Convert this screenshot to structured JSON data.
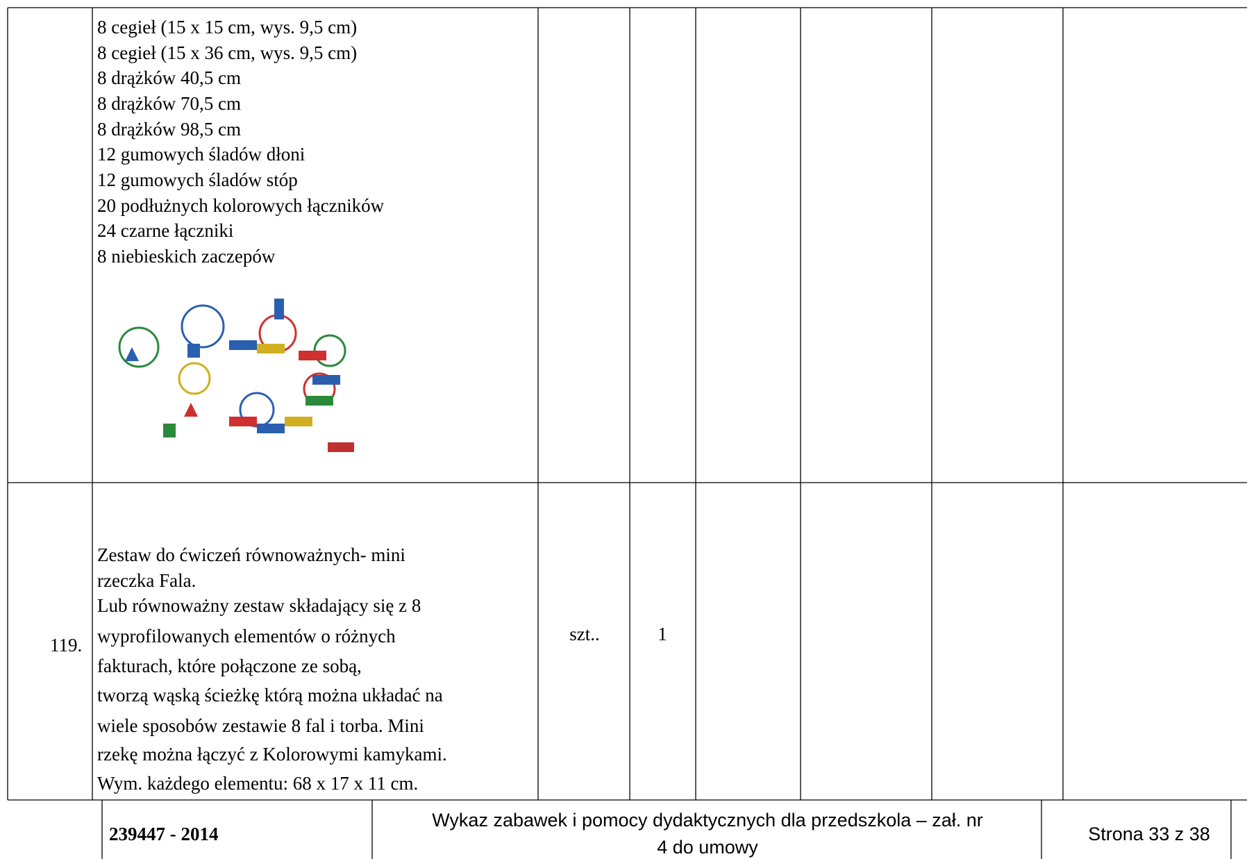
{
  "table": {
    "rows": [
      {
        "number": null,
        "description": [
          "8 cegieł (15 x 15 cm, wys. 9,5 cm)",
          "8 cegieł (15 x 36 cm, wys. 9,5 cm)",
          "8 drążków 40,5 cm",
          "8 drążków 70,5 cm",
          "8 drążków 98,5 cm",
          "12 gumowych śladów dłoni",
          "12 gumowych śladów stóp",
          "20 podłużnych kolorowych łączników",
          "24 czarne łączniki",
          "8 niebieskich zaczepów"
        ],
        "unit": null,
        "quantity": null
      },
      {
        "number": "119.",
        "description": [
          "Zestaw do ćwiczeń równoważnych- mini",
          "rzeczka Fala.",
          "Lub równoważny zestaw składający się z 8",
          "wyprofilowanych elementów o różnych",
          "fakturach, które połączone ze sobą,",
          "tworzą wąską ścieżkę którą  można układać na",
          "wiele sposobów zestawie 8 fal i torba. Mini",
          "rzekę można łączyć z Kolorowymi kamykami.",
          "Wym. każdego elementu: 68 x 17 x 11 cm."
        ],
        "unit": "szt..",
        "quantity": "1"
      }
    ]
  },
  "footer": {
    "code": "239447 - 2014",
    "title": [
      "Wykaz zabawek i pomocy dydaktycznych dla przedszkola – zał. nr",
      "4 do umowy"
    ],
    "page": "Strona 33 z 38"
  }
}
